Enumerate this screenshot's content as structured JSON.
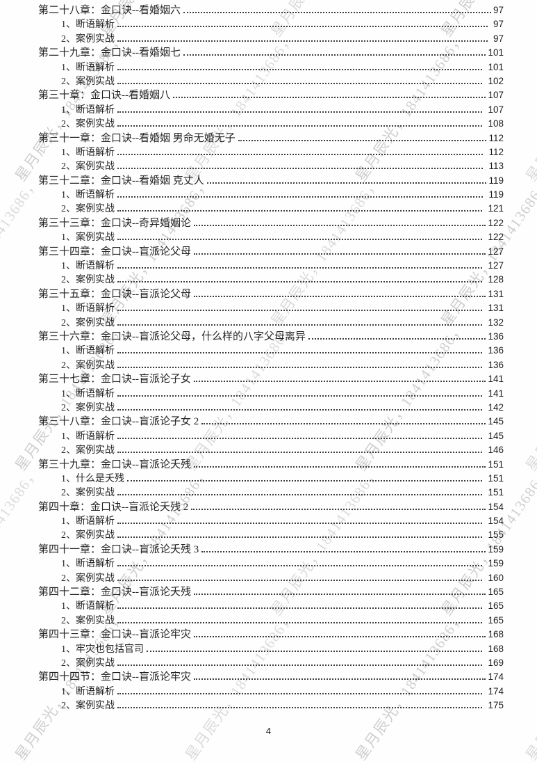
{
  "document": {
    "footer_page_number": "4",
    "watermark": {
      "text": "星月辰光，1841413686，",
      "color": "#a9a7a4"
    },
    "text_color": "#242424"
  },
  "toc": {
    "entries": [
      {
        "level": 1,
        "title": "第二十八章：金口诀--看婚姻六",
        "page": "97"
      },
      {
        "level": 2,
        "title": "1、断语解析",
        "page": "97"
      },
      {
        "level": 2,
        "title": "2、案例实战",
        "page": "97"
      },
      {
        "level": 1,
        "title": "第二十九章：金口诀--看婚姻七",
        "page": "101"
      },
      {
        "level": 2,
        "title": "1、断语解析",
        "page": "101"
      },
      {
        "level": 2,
        "title": "2、案例实战",
        "page": "102"
      },
      {
        "level": 1,
        "title": "第三十章：金口诀--看婚姻八",
        "page": "107"
      },
      {
        "level": 2,
        "title": "1、断语解析",
        "page": "107"
      },
      {
        "level": 2,
        "title": "2、案例实战",
        "page": "108"
      },
      {
        "level": 1,
        "title": "第三十一章：金口诀--看婚姻 男命无婚无子",
        "page": "112"
      },
      {
        "level": 2,
        "title": "1、断语解析",
        "page": "112"
      },
      {
        "level": 2,
        "title": "2、案例实战",
        "page": "113"
      },
      {
        "level": 1,
        "title": "第三十二章：金口诀--看婚姻 克丈人",
        "page": "119"
      },
      {
        "level": 2,
        "title": "1、断语解析",
        "page": "119"
      },
      {
        "level": 2,
        "title": "2、案例实战",
        "page": "121"
      },
      {
        "level": 1,
        "title": "第三十三章：金口诀--奇异婚姻论",
        "page": "122"
      },
      {
        "level": 2,
        "title": "1、案例实战",
        "page": "122"
      },
      {
        "level": 1,
        "title": "第三十四章：金口诀--盲派论父母",
        "page": "127"
      },
      {
        "level": 2,
        "title": "1、断语解析",
        "page": "127"
      },
      {
        "level": 2,
        "title": "2、案例实战",
        "page": "128"
      },
      {
        "level": 1,
        "title": "第三十五章：金口诀--盲派论父母",
        "page": "131"
      },
      {
        "level": 2,
        "title": "1、断语解析",
        "page": "131"
      },
      {
        "level": 2,
        "title": "2、案例实战",
        "page": "132"
      },
      {
        "level": 1,
        "title": "第三十六章：金口诀--盲派论父母，什么样的八字父母离异",
        "page": "136"
      },
      {
        "level": 2,
        "title": "1、断语解析",
        "page": "136"
      },
      {
        "level": 2,
        "title": "2、案例实战",
        "page": "136"
      },
      {
        "level": 1,
        "title": "第三十七章：金口诀--盲派论子女",
        "page": "141"
      },
      {
        "level": 2,
        "title": "1、断语解析",
        "page": "141"
      },
      {
        "level": 2,
        "title": "2、案例实战",
        "page": "142"
      },
      {
        "level": 1,
        "title": "第三十八章：金口诀--盲派论子女 2",
        "page": "145"
      },
      {
        "level": 2,
        "title": "1、断语解析",
        "page": "145"
      },
      {
        "level": 2,
        "title": "2、案例实战",
        "page": "146"
      },
      {
        "level": 1,
        "title": "第三十九章：金口诀--盲派论夭残",
        "page": "151"
      },
      {
        "level": 2,
        "title": "1、什么是夭残",
        "page": "151"
      },
      {
        "level": 2,
        "title": "2、案例实战",
        "page": "151"
      },
      {
        "level": 1,
        "title": "第四十章：金口诀--盲派论夭残 2",
        "page": "154"
      },
      {
        "level": 2,
        "title": "1、断语解析",
        "page": "154"
      },
      {
        "level": 2,
        "title": "2、案例实战",
        "page": "155"
      },
      {
        "level": 1,
        "title": "第四十一章：金口诀--盲派论夭残 3",
        "page": "159"
      },
      {
        "level": 2,
        "title": "1、断语解析",
        "page": "159"
      },
      {
        "level": 2,
        "title": "2、案例实战",
        "page": "160"
      },
      {
        "level": 1,
        "title": "第四十二章：金口诀--盲派论夭残",
        "page": "165"
      },
      {
        "level": 2,
        "title": "1、断语解析",
        "page": "165"
      },
      {
        "level": 2,
        "title": "2、案例实战",
        "page": "165"
      },
      {
        "level": 1,
        "title": "第四十三章：金口诀--盲派论牢灾",
        "page": "168"
      },
      {
        "level": 2,
        "title": "1、牢灾也包括官司",
        "page": "168"
      },
      {
        "level": 2,
        "title": "2、案例实战",
        "page": "169"
      },
      {
        "level": 1,
        "title": "第四十四节：金口诀--盲派论牢灾",
        "page": "174"
      },
      {
        "level": 2,
        "title": "1、断语解析",
        "page": "174"
      },
      {
        "level": 2,
        "title": "2、案例实战",
        "page": "175"
      }
    ]
  }
}
